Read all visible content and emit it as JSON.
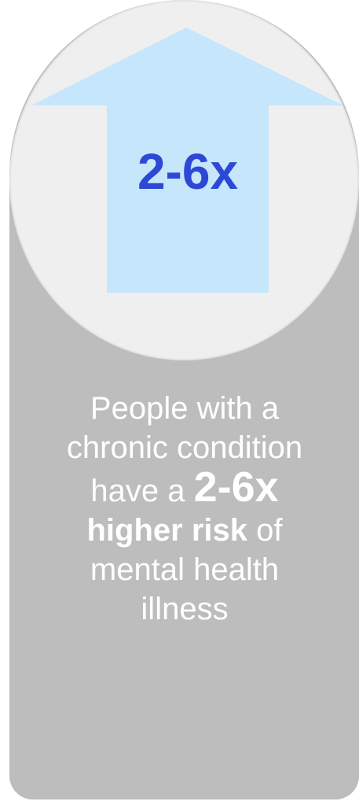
{
  "infographic": {
    "stat_value": "2-6x",
    "caption": {
      "line1": "People with a",
      "line2": "chronic condition",
      "line3_prefix": "have a ",
      "line3_emphasis": "2-6x",
      "line4_emphasis": "higher risk",
      "line4_suffix": " of",
      "line5": "mental health",
      "line6": "illness"
    }
  },
  "colors": {
    "card_background": "#bdbdbd",
    "circle_background": "#efefef",
    "arrow_fill": "#c6e6fb",
    "stat_text": "#2e48d6",
    "caption_text": "#ffffff"
  },
  "icons": {
    "arrow": "up-arrow-icon"
  }
}
